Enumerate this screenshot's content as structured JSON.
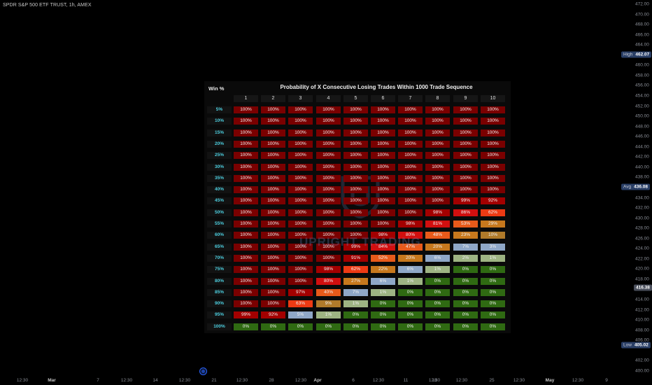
{
  "symbol_title": "SPDR S&P 500 ETF TRUST, 1h, AMEX",
  "price_axis": {
    "labels": [
      "472.00",
      "470.00",
      "468.00",
      "466.00",
      "464.00",
      "460.00",
      "458.00",
      "456.00",
      "454.00",
      "452.00",
      "450.00",
      "448.00",
      "446.00",
      "444.00",
      "442.00",
      "440.00",
      "438.00",
      "434.00",
      "432.00",
      "430.00",
      "428.00",
      "426.00",
      "424.00",
      "422.00",
      "420.00",
      "418.00",
      "414.00",
      "412.00",
      "410.00",
      "408.00",
      "406.00",
      "402.00",
      "400.00"
    ],
    "high_label": "High",
    "high_value": "462.07",
    "avg_label": "Avg",
    "avg_value": "436.08",
    "current_value": "416.38",
    "low_label": "Low",
    "low_value": "405.02",
    "high_color": "#2a3f66",
    "avg_color": "#2a3f66",
    "low_color": "#2a3f66",
    "current_color": "#4a4f5c"
  },
  "time_axis": {
    "labels": [
      "12:30",
      "Mar",
      "7",
      "12:30",
      "14",
      "12:30",
      "21",
      "12:30",
      "28",
      "12:30",
      "Apr",
      "6",
      "12:30",
      "11",
      "12:30",
      "18",
      "12:30",
      "25",
      "12:30",
      "May",
      "12:30",
      "9"
    ]
  },
  "table": {
    "title": "Probability of X Consecutive Losing Trades Within 1000 Trade Sequence",
    "win_header": "Win %",
    "columns": [
      "1",
      "2",
      "3",
      "4",
      "5",
      "6",
      "7",
      "8",
      "9",
      "10"
    ],
    "rows": [
      {
        "win": "5%",
        "values": [
          "100%",
          "100%",
          "100%",
          "100%",
          "100%",
          "100%",
          "100%",
          "100%",
          "100%",
          "100%"
        ]
      },
      {
        "win": "10%",
        "values": [
          "100%",
          "100%",
          "100%",
          "100%",
          "100%",
          "100%",
          "100%",
          "100%",
          "100%",
          "100%"
        ]
      },
      {
        "win": "15%",
        "values": [
          "100%",
          "100%",
          "100%",
          "100%",
          "100%",
          "100%",
          "100%",
          "100%",
          "100%",
          "100%"
        ]
      },
      {
        "win": "20%",
        "values": [
          "100%",
          "100%",
          "100%",
          "100%",
          "100%",
          "100%",
          "100%",
          "100%",
          "100%",
          "100%"
        ]
      },
      {
        "win": "25%",
        "values": [
          "100%",
          "100%",
          "100%",
          "100%",
          "100%",
          "100%",
          "100%",
          "100%",
          "100%",
          "100%"
        ]
      },
      {
        "win": "30%",
        "values": [
          "100%",
          "100%",
          "100%",
          "100%",
          "100%",
          "100%",
          "100%",
          "100%",
          "100%",
          "100%"
        ]
      },
      {
        "win": "35%",
        "values": [
          "100%",
          "100%",
          "100%",
          "100%",
          "100%",
          "100%",
          "100%",
          "100%",
          "100%",
          "100%"
        ]
      },
      {
        "win": "40%",
        "values": [
          "100%",
          "100%",
          "100%",
          "100%",
          "100%",
          "100%",
          "100%",
          "100%",
          "100%",
          "100%"
        ]
      },
      {
        "win": "45%",
        "values": [
          "100%",
          "100%",
          "100%",
          "100%",
          "100%",
          "100%",
          "100%",
          "100%",
          "99%",
          "92%"
        ]
      },
      {
        "win": "50%",
        "values": [
          "100%",
          "100%",
          "100%",
          "100%",
          "100%",
          "100%",
          "100%",
          "98%",
          "86%",
          "62%"
        ]
      },
      {
        "win": "55%",
        "values": [
          "100%",
          "100%",
          "100%",
          "100%",
          "100%",
          "100%",
          "98%",
          "81%",
          "53%",
          "29%"
        ]
      },
      {
        "win": "60%",
        "values": [
          "100%",
          "100%",
          "100%",
          "100%",
          "100%",
          "98%",
          "80%",
          "48%",
          "23%",
          "10%"
        ]
      },
      {
        "win": "65%",
        "values": [
          "100%",
          "100%",
          "100%",
          "100%",
          "99%",
          "84%",
          "47%",
          "20%",
          "7%",
          "3%"
        ]
      },
      {
        "win": "70%",
        "values": [
          "100%",
          "100%",
          "100%",
          "100%",
          "91%",
          "52%",
          "20%",
          "6%",
          "2%",
          "1%"
        ]
      },
      {
        "win": "75%",
        "values": [
          "100%",
          "100%",
          "100%",
          "98%",
          "62%",
          "22%",
          "6%",
          "1%",
          "0%",
          "0%"
        ]
      },
      {
        "win": "80%",
        "values": [
          "100%",
          "100%",
          "100%",
          "80%",
          "27%",
          "6%",
          "1%",
          "0%",
          "0%",
          "0%"
        ]
      },
      {
        "win": "85%",
        "values": [
          "100%",
          "100%",
          "97%",
          "40%",
          "7%",
          "1%",
          "0%",
          "0%",
          "0%",
          "0%"
        ]
      },
      {
        "win": "90%",
        "values": [
          "100%",
          "100%",
          "63%",
          "9%",
          "1%",
          "0%",
          "0%",
          "0%",
          "0%",
          "0%"
        ]
      },
      {
        "win": "95%",
        "values": [
          "99%",
          "92%",
          "5%",
          "1%",
          "0%",
          "0%",
          "0%",
          "0%",
          "0%",
          "0%"
        ]
      },
      {
        "win": "100%",
        "values": [
          "0%",
          "0%",
          "0%",
          "0%",
          "0%",
          "0%",
          "0%",
          "0%",
          "0%",
          "0%"
        ]
      }
    ]
  },
  "watermark_text": "UPRIGHT TRADING",
  "colors": {
    "c100": "#7a0000",
    "c9x": "#a30000",
    "c8x": "#d10f0f",
    "c6x": "#ee3a14",
    "c4x": "#e85a1a",
    "c2x": "#c7781d",
    "c1x": "#b07a2a",
    "c5x_low": "#8fa7c7",
    "c1_low": "#9eb483",
    "c0": "#2f6a12",
    "win_text": "#4dd0e1"
  }
}
